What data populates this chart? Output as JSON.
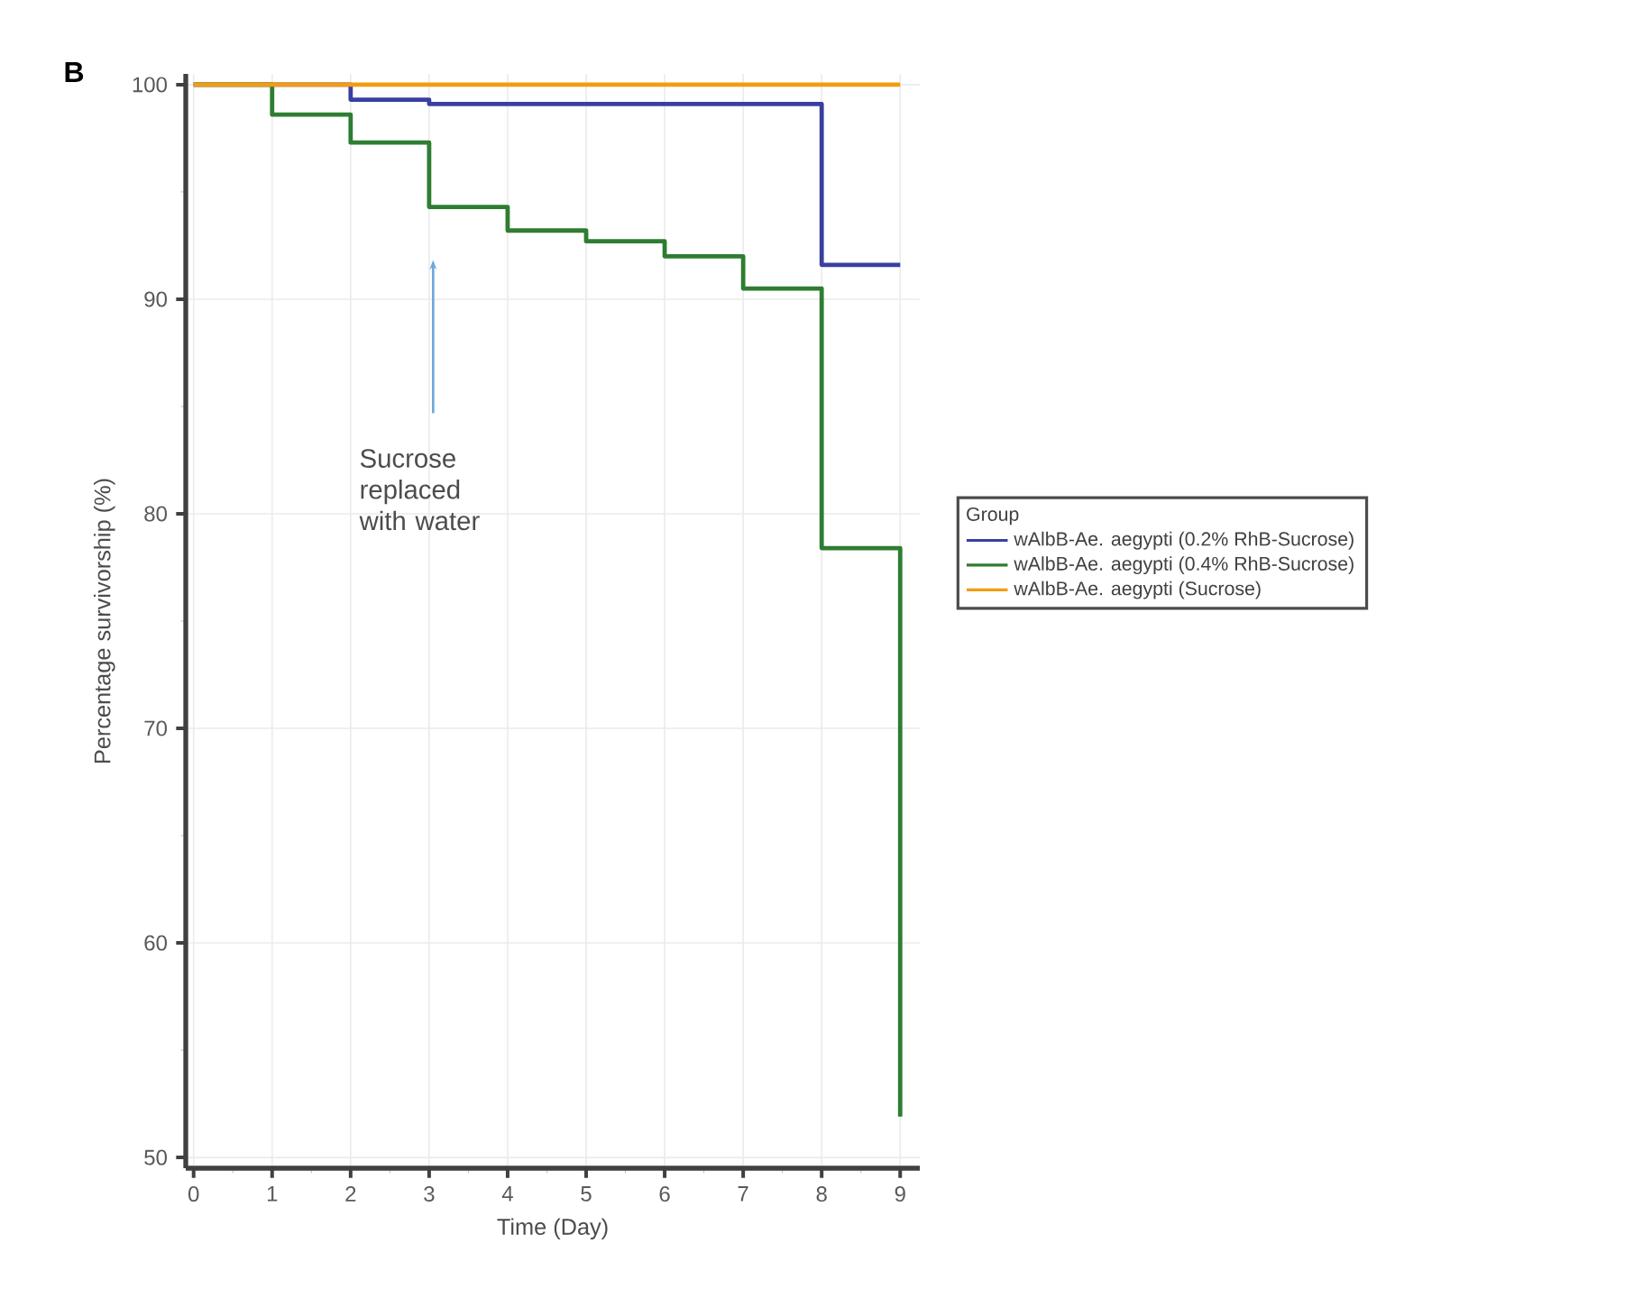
{
  "chart_data": {
    "type": "step",
    "title": "B",
    "xlabel": "Time (Day)",
    "ylabel": "Percentage survivorship (%)",
    "legend_title": "Group",
    "x": [
      0,
      1,
      2,
      3,
      4,
      5,
      6,
      7,
      8,
      9
    ],
    "series": [
      {
        "name": "wAlbB-Ae. aegypti (0.2% RhB-Sucrose)",
        "color": "#3a3fa0",
        "values": [
          100,
          100,
          99.3,
          99.1,
          99.1,
          99.1,
          99.1,
          99.1,
          91.6,
          91.6
        ]
      },
      {
        "name": "wAlbB-Ae. aegypti (0.4% RhB-Sucrose)",
        "color": "#2e7d32",
        "values": [
          100,
          98.6,
          97.3,
          94.3,
          93.2,
          92.7,
          92.0,
          90.5,
          78.4,
          51.9
        ]
      },
      {
        "name": "wAlbB-Ae. aegypti (Sucrose)",
        "color": "#f39c12",
        "values": [
          100,
          100,
          100,
          100,
          100,
          100,
          100,
          100,
          100,
          100
        ]
      }
    ],
    "xlim": [
      -0.1,
      9.25
    ],
    "ylim": [
      49.5,
      100.5
    ],
    "xticks": [
      0,
      1,
      2,
      3,
      4,
      5,
      6,
      7,
      8,
      9
    ],
    "yticks": [
      50,
      60,
      70,
      80,
      90,
      100
    ],
    "grid": true,
    "legend": "right",
    "marker": "none",
    "line_style": "solid",
    "annotations": [
      "Sucrose replaced with water"
    ]
  }
}
